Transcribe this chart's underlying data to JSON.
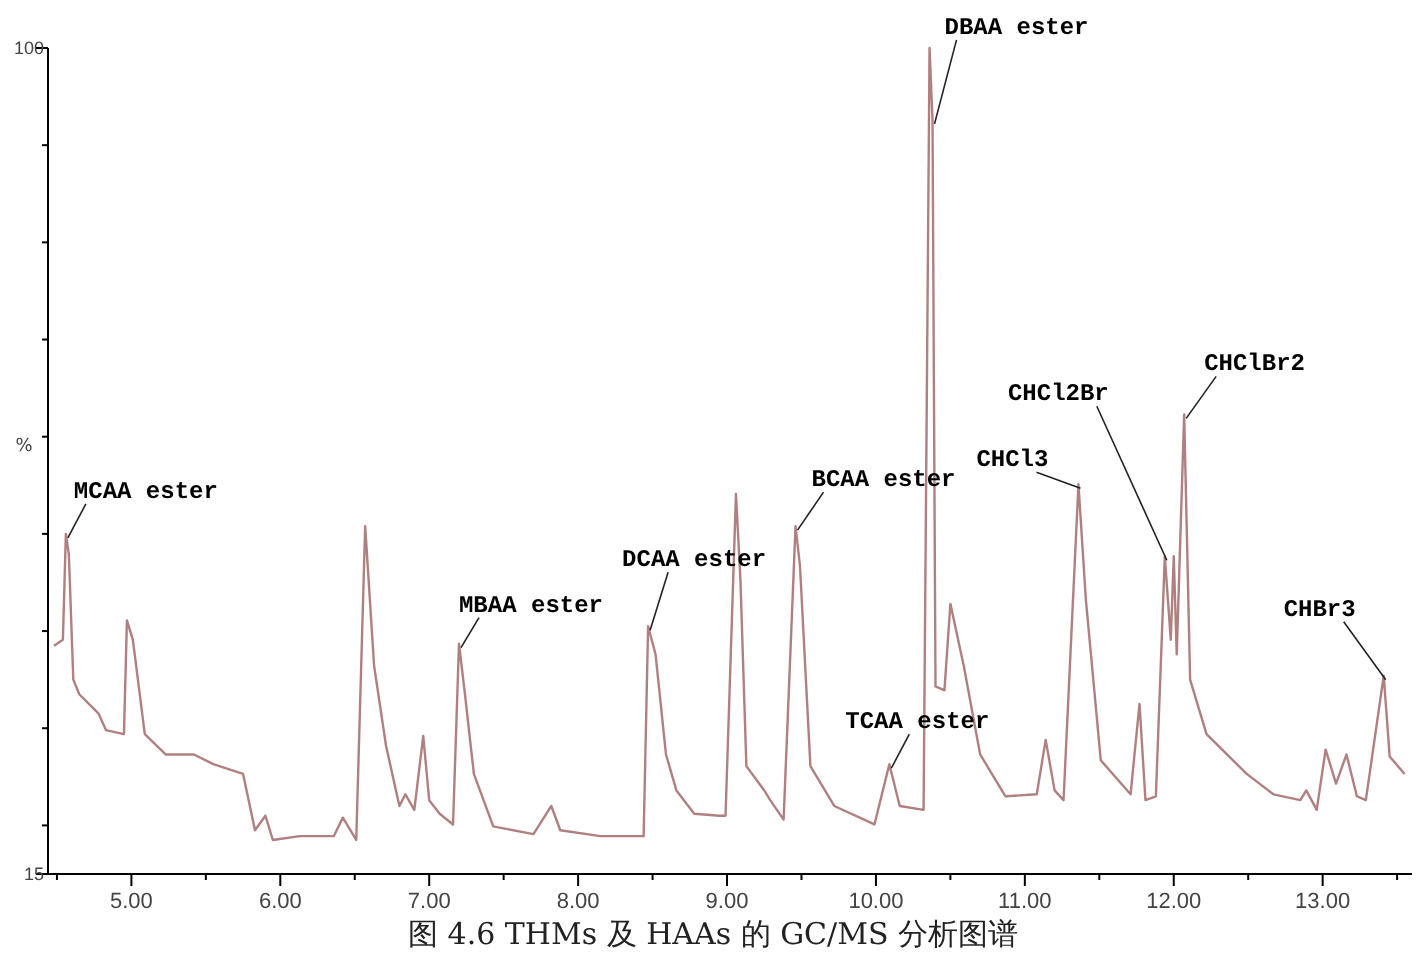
{
  "chart_data": {
    "type": "line",
    "ylabel": "%",
    "x": [
      4.48,
      4.54,
      4.56,
      4.58,
      4.61,
      4.65,
      4.78,
      4.83,
      4.95,
      4.97,
      5.01,
      5.09,
      5.23,
      5.42,
      5.55,
      5.75,
      5.83,
      5.9,
      5.95,
      6.13,
      6.36,
      6.42,
      6.51,
      6.57,
      6.63,
      6.71,
      6.8,
      6.84,
      6.9,
      6.96,
      7.0,
      7.07,
      7.16,
      7.2,
      7.24,
      7.3,
      7.43,
      7.7,
      7.82,
      7.88,
      8.15,
      8.44,
      8.47,
      8.52,
      8.59,
      8.66,
      8.78,
      8.95,
      8.99,
      9.06,
      9.09,
      9.13,
      9.25,
      9.29,
      9.38,
      9.46,
      9.49,
      9.56,
      9.72,
      9.99,
      10.09,
      10.16,
      10.32,
      10.36,
      10.38,
      10.4,
      10.46,
      10.5,
      10.59,
      10.7,
      10.87,
      11.08,
      11.14,
      11.2,
      11.26,
      11.36,
      11.41,
      11.51,
      11.71,
      11.77,
      11.81,
      11.88,
      11.94,
      11.98,
      12.0,
      12.02,
      12.07,
      12.11,
      12.22,
      12.49,
      12.67,
      12.85,
      12.89,
      12.96,
      13.02,
      13.09,
      13.16,
      13.23,
      13.29,
      13.41,
      13.45,
      13.55
    ],
    "series": [
      {
        "color": "#b08080",
        "values": [
          38.5,
          39.1,
          50.0,
          47.9,
          35.0,
          33.5,
          31.5,
          29.8,
          29.4,
          41.1,
          39.1,
          29.4,
          27.3,
          27.3,
          26.3,
          25.3,
          19.5,
          21.0,
          18.5,
          18.9,
          18.9,
          20.8,
          18.5,
          50.8,
          36.4,
          28.2,
          22.0,
          23.2,
          21.6,
          29.2,
          22.6,
          21.2,
          20.1,
          38.7,
          33.5,
          25.3,
          19.9,
          19.1,
          22.0,
          19.5,
          18.9,
          18.9,
          40.5,
          37.6,
          27.3,
          23.6,
          21.2,
          21.0,
          21.0,
          54.1,
          45.3,
          26.1,
          23.6,
          22.6,
          20.6,
          50.8,
          46.7,
          26.1,
          22.0,
          20.1,
          26.3,
          22.0,
          21.6,
          100,
          92.6,
          34.3,
          33.9,
          42.8,
          36.4,
          27.3,
          23.0,
          23.2,
          28.8,
          23.6,
          22.6,
          55.1,
          43.2,
          26.7,
          23.2,
          32.5,
          22.6,
          23.0,
          47.7,
          39.1,
          47.7,
          37.6,
          62.3,
          35.0,
          29.4,
          25.3,
          23.2,
          22.6,
          23.6,
          21.6,
          27.8,
          24.3,
          27.3,
          23.0,
          22.6,
          35.4,
          27.1,
          25.3
        ]
      }
    ],
    "xlim": [
      4.44,
      13.6
    ],
    "ylim": [
      15,
      100
    ],
    "xticks": [
      {
        "value": 4.5,
        "label": null
      },
      {
        "value": 5,
        "label": "5.00"
      },
      {
        "value": 5.5,
        "label": null
      },
      {
        "value": 6,
        "label": "6.00"
      },
      {
        "value": 6.5,
        "label": null
      },
      {
        "value": 7,
        "label": "7.00"
      },
      {
        "value": 7.5,
        "label": null
      },
      {
        "value": 8,
        "label": "8.00"
      },
      {
        "value": 8.5,
        "label": null
      },
      {
        "value": 9,
        "label": "9.00"
      },
      {
        "value": 9.5,
        "label": null
      },
      {
        "value": 10,
        "label": "10.00"
      },
      {
        "value": 10.5,
        "label": null
      },
      {
        "value": 11,
        "label": "11.00"
      },
      {
        "value": 11.5,
        "label": null
      },
      {
        "value": 12,
        "label": "12.00"
      },
      {
        "value": 12.5,
        "label": null
      },
      {
        "value": 13,
        "label": "13.00"
      },
      {
        "value": 13.5,
        "label": null
      }
    ],
    "yticks": [
      15,
      {
        "value": 20,
        "label": null
      },
      {
        "value": 30,
        "label": null
      },
      {
        "value": 40,
        "label": null
      },
      {
        "value": 50,
        "label": null
      },
      {
        "value": 60,
        "label": null
      },
      {
        "value": 70,
        "label": null
      },
      {
        "value": 80,
        "label": null
      },
      {
        "value": 90,
        "label": null
      },
      100
    ],
    "annotations": [
      {
        "text": "MCAA ester",
        "x": 4.56,
        "y": 50.0
      },
      {
        "text": "MBAA ester",
        "x": 7.2,
        "y": 38.7
      },
      {
        "text": "DCAA ester",
        "x": 8.47,
        "y": 40.5
      },
      {
        "text": "BCAA ester",
        "x": 9.46,
        "y": 50.8
      },
      {
        "text": "TCAA ester",
        "x": 10.09,
        "y": 26.3
      },
      {
        "text": "DBAA ester",
        "x": 10.38,
        "y": 92.6
      },
      {
        "text": "CHCl3",
        "x": 11.36,
        "y": 55.1
      },
      {
        "text": "CHCl2Br",
        "x": 11.94,
        "y": 47.7
      },
      {
        "text": "CHClBr2",
        "x": 12.07,
        "y": 62.3
      },
      {
        "text": "CHBr3",
        "x": 13.41,
        "y": 35.4
      },
      "图 4.6 THMs 及 HAAs 的 GC/MS 分析图谱"
    ]
  }
}
